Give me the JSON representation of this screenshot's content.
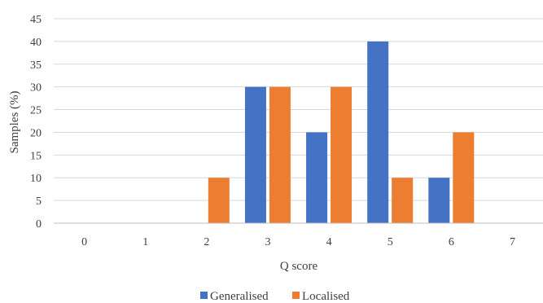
{
  "chart_data": {
    "type": "bar",
    "title": "",
    "xlabel": "Q score",
    "ylabel": "Samples (%)",
    "categories": [
      "0",
      "1",
      "2",
      "3",
      "4",
      "5",
      "6",
      "7"
    ],
    "ylim": [
      0,
      45
    ],
    "yticks": [
      "0",
      "5",
      "10",
      "15",
      "20",
      "25",
      "30",
      "35",
      "40",
      "45"
    ],
    "grid": true,
    "legend_position": "bottom",
    "series": [
      {
        "name": "Generalised",
        "color": "#4472c4",
        "values": [
          0,
          0,
          0,
          30,
          20,
          40,
          10,
          0
        ]
      },
      {
        "name": "Localised",
        "color": "#ed7d31",
        "values": [
          0,
          0,
          10,
          30,
          30,
          10,
          20,
          0
        ]
      }
    ]
  }
}
